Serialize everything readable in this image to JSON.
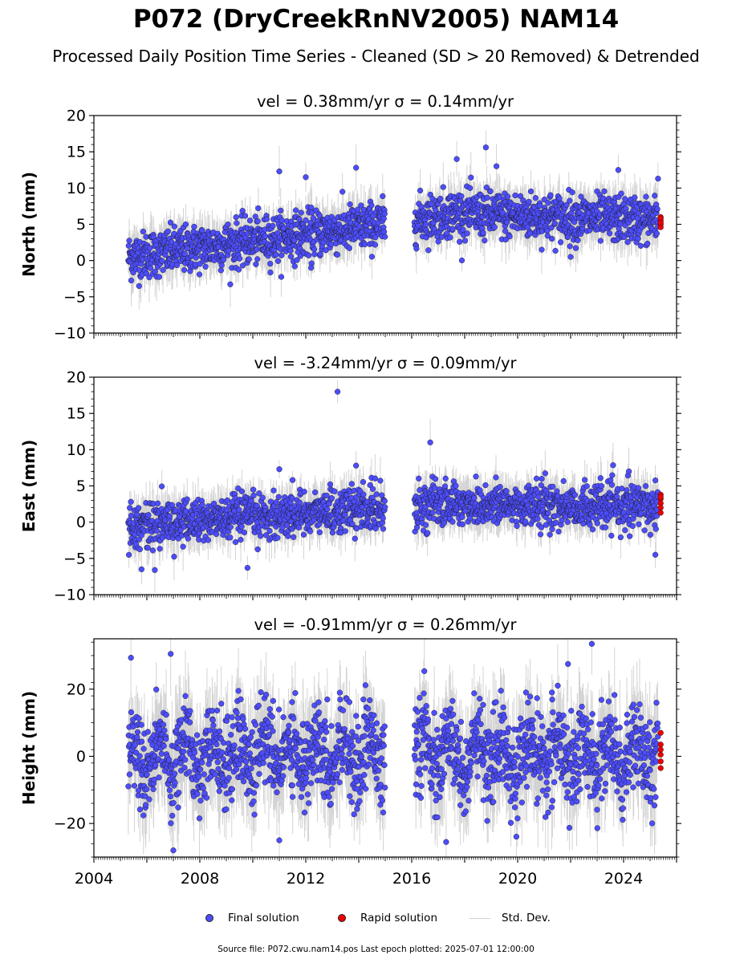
{
  "title": "P072 (DryCreekRnNV2005) NAM14",
  "subtitle": "Processed Daily Position Time Series - Cleaned (SD > 20 Removed) & Detrended",
  "footer": "Source file: P072.cwu.nam14.pos  Last epoch plotted: 2025-07-01 12:00:00",
  "legend": {
    "final": "Final solution",
    "rapid": "Rapid solution",
    "std": "Std. Dev."
  },
  "colors": {
    "final": "#4d4dff",
    "rapid": "#ee0000",
    "stddev": "#b0b0b0",
    "marker_edge": "#1a1a1a"
  },
  "chart_data": [
    {
      "type": "scatter",
      "panel": "north",
      "title": "vel = 0.38mm/yr   σ = 0.14mm/yr",
      "ylabel": "North (mm)",
      "xlim": [
        2004,
        2026
      ],
      "ylim": [
        -10,
        20
      ],
      "yticks": [
        -10,
        -5,
        0,
        5,
        10,
        15,
        20
      ],
      "ytick_labels": [
        "−10",
        "−5",
        "0",
        "5",
        "10",
        "15",
        "20"
      ],
      "xtick_labels_visible": false,
      "trend": {
        "start": [
          2005.3,
          0.5
        ],
        "end": [
          2025.4,
          5.5
        ],
        "knee": [
          2015.0,
          5.0
        ],
        "knee2": [
          2017.5,
          6.5
        ]
      },
      "scatter_sd": 1.6,
      "gap": [
        2015.0,
        2016.1
      ],
      "series": [
        {
          "name": "Final solution",
          "role": "final",
          "x_range": [
            2005.3,
            2025.3
          ]
        },
        {
          "name": "Rapid solution",
          "role": "rapid",
          "x": [
            2025.4,
            2025.4,
            2025.4,
            2025.4,
            2025.4,
            2025.4
          ],
          "y": [
            6.0,
            5.5,
            5.0,
            4.6,
            5.8,
            5.2
          ]
        }
      ],
      "outliers": [
        {
          "x": 2011.0,
          "y": 12.3
        },
        {
          "x": 2012.0,
          "y": 11.5
        },
        {
          "x": 2013.9,
          "y": 12.8
        },
        {
          "x": 2017.7,
          "y": 14.0
        },
        {
          "x": 2018.8,
          "y": 15.6
        },
        {
          "x": 2019.2,
          "y": 13.0
        },
        {
          "x": 2022.0,
          "y": 0.5
        },
        {
          "x": 2023.8,
          "y": 12.5
        },
        {
          "x": 2012.2,
          "y": -1.0
        },
        {
          "x": 2025.3,
          "y": 11.3
        }
      ]
    },
    {
      "type": "scatter",
      "panel": "east",
      "title": "vel = -3.24mm/yr   σ = 0.09mm/yr",
      "ylabel": "East (mm)",
      "xlim": [
        2004,
        2026
      ],
      "ylim": [
        -10,
        20
      ],
      "yticks": [
        -10,
        -5,
        0,
        5,
        10,
        15,
        20
      ],
      "ytick_labels": [
        "−10",
        "−5",
        "0",
        "5",
        "10",
        "15",
        "20"
      ],
      "xtick_labels_visible": false,
      "trend": {
        "start": [
          2005.3,
          -0.5
        ],
        "end": [
          2025.4,
          2.0
        ],
        "knee": [
          2015.0,
          2.0
        ],
        "knee2": [
          2017.5,
          2.5
        ]
      },
      "scatter_sd": 1.5,
      "gap": [
        2015.0,
        2016.1
      ],
      "series": [
        {
          "name": "Final solution",
          "role": "final",
          "x_range": [
            2005.3,
            2025.3
          ]
        },
        {
          "name": "Rapid solution",
          "role": "rapid",
          "x": [
            2025.4,
            2025.4,
            2025.4,
            2025.4,
            2025.4,
            2025.4
          ],
          "y": [
            3.8,
            3.2,
            2.6,
            2.0,
            1.3,
            3.5
          ]
        }
      ],
      "outliers": [
        {
          "x": 2013.2,
          "y": 18.0
        },
        {
          "x": 2016.7,
          "y": 11.0
        },
        {
          "x": 2011.0,
          "y": 7.3
        },
        {
          "x": 2013.9,
          "y": 7.8
        },
        {
          "x": 2005.8,
          "y": -6.5
        },
        {
          "x": 2006.3,
          "y": -6.6
        },
        {
          "x": 2009.8,
          "y": -6.3
        },
        {
          "x": 2025.2,
          "y": -4.5
        },
        {
          "x": 2024.2,
          "y": 7.0
        }
      ]
    },
    {
      "type": "scatter",
      "panel": "height",
      "title": "vel = -0.91mm/yr   σ = 0.26mm/yr",
      "ylabel": "Height (mm)",
      "xlim": [
        2004,
        2026
      ],
      "ylim": [
        -30,
        35
      ],
      "yticks": [
        -20,
        0,
        20
      ],
      "ytick_labels": [
        "−20",
        "0",
        "20"
      ],
      "xtick_labels_visible": true,
      "xticks": [
        2004,
        2008,
        2012,
        2016,
        2020,
        2024
      ],
      "xtick_labels": [
        "2004",
        "2008",
        "2012",
        "2016",
        "2020",
        "2024"
      ],
      "trend": {
        "start": [
          2005.3,
          0.0
        ],
        "end": [
          2025.4,
          0.0
        ],
        "knee": [
          2015.0,
          2.0
        ],
        "knee2": [
          2017.5,
          0.0
        ]
      },
      "scatter_sd": 6.5,
      "seasonal_amp": 5,
      "gap": [
        2015.0,
        2016.1
      ],
      "series": [
        {
          "name": "Final solution",
          "role": "final",
          "x_range": [
            2005.3,
            2025.3
          ]
        },
        {
          "name": "Rapid solution",
          "role": "rapid",
          "x": [
            2025.4,
            2025.4,
            2025.4,
            2025.4,
            2025.4,
            2025.4
          ],
          "y": [
            7.0,
            3.5,
            0.5,
            -1.5,
            -3.5,
            2.0
          ]
        }
      ],
      "outliers": [
        {
          "x": 2006.9,
          "y": 30.5
        },
        {
          "x": 2022.8,
          "y": 33.5
        },
        {
          "x": 2007.0,
          "y": -28.0
        },
        {
          "x": 2017.3,
          "y": -25.5
        },
        {
          "x": 2011.0,
          "y": -25.0
        },
        {
          "x": 2021.9,
          "y": 27.5
        }
      ]
    }
  ]
}
